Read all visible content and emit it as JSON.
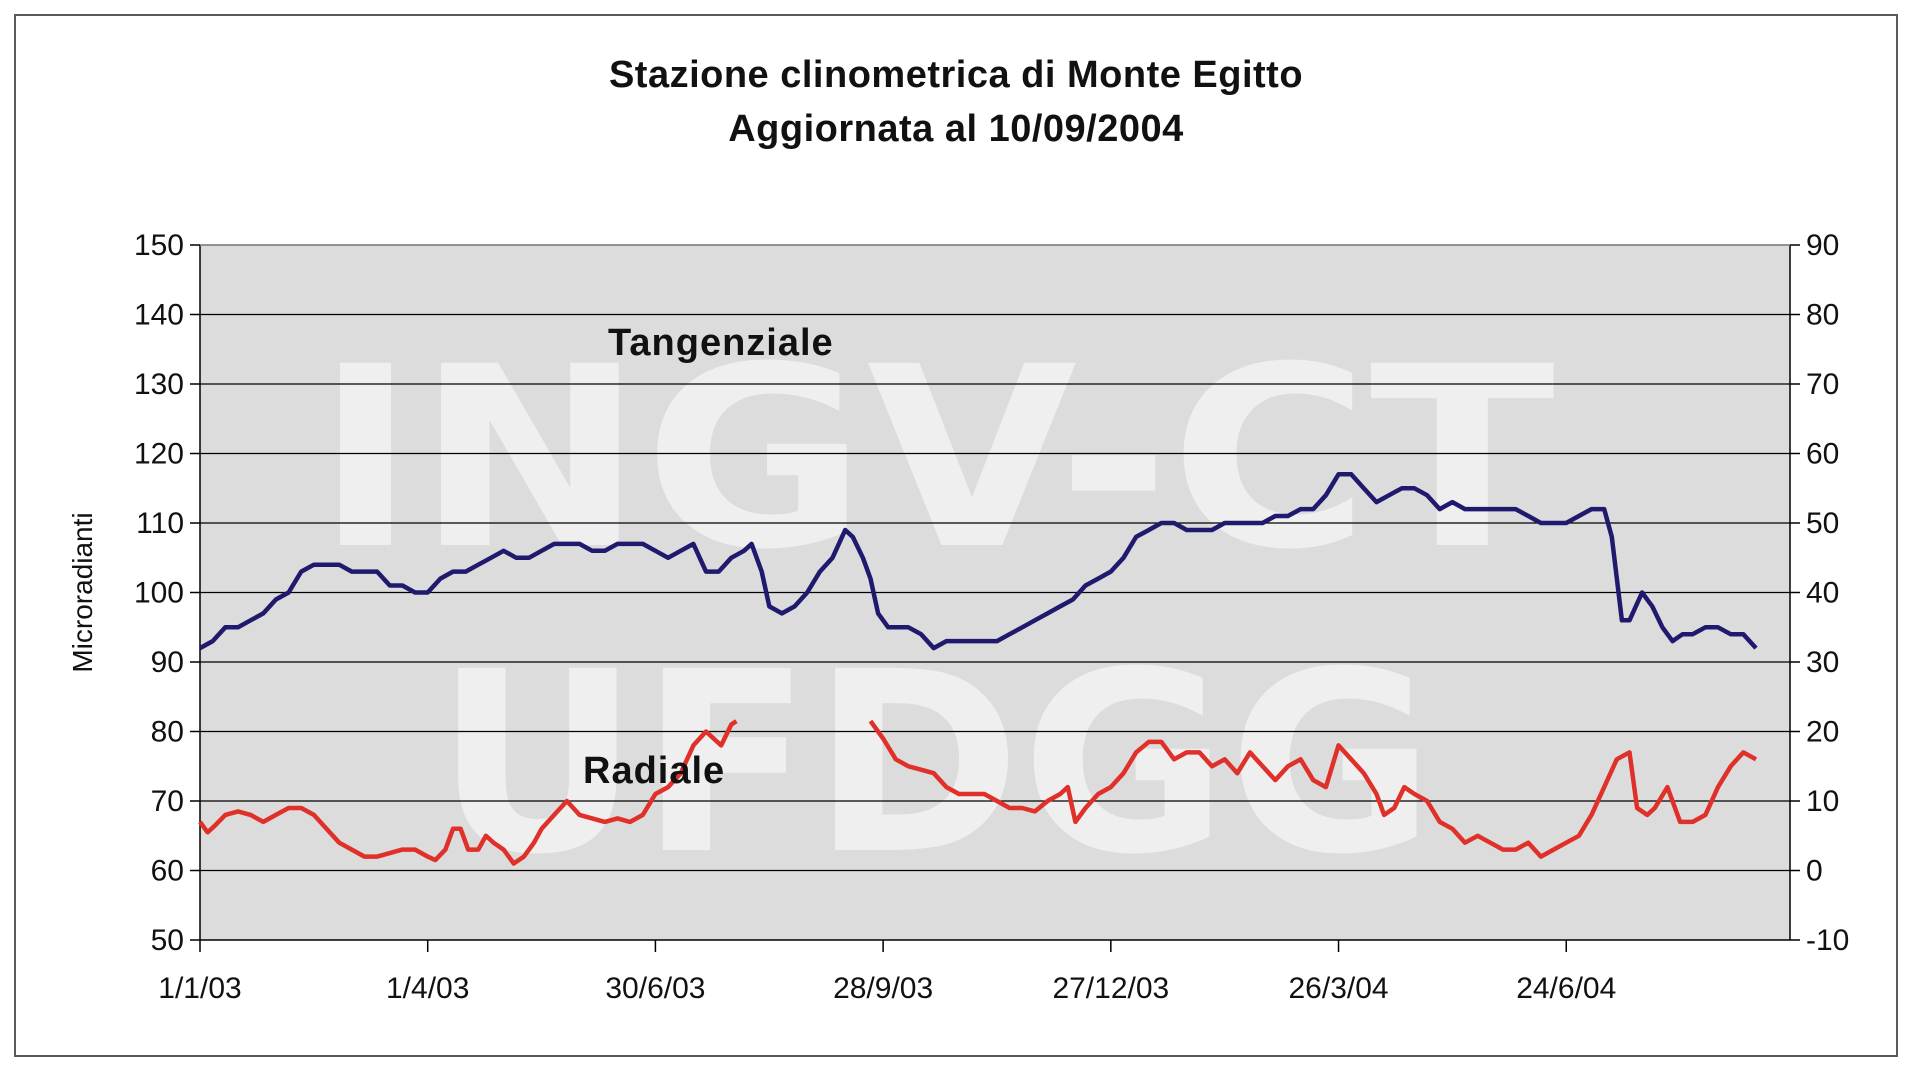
{
  "chart_data": {
    "type": "line",
    "title": "Stazione clinometrica di Monte Egitto",
    "subtitle": "Aggiornata al 10/09/2004",
    "ylabel": "Microradianti",
    "ylim": [
      50,
      150
    ],
    "y2lim": [
      -10,
      90
    ],
    "y_ticks": [
      "50",
      "60",
      "70",
      "80",
      "90",
      "100",
      "110",
      "120",
      "130",
      "140",
      "150"
    ],
    "y2_ticks": [
      "-10",
      "0",
      "10",
      "20",
      "30",
      "40",
      "50",
      "60",
      "70",
      "80",
      "90"
    ],
    "x_tick_labels": [
      "1/1/03",
      "1/4/03",
      "30/6/03",
      "28/9/03",
      "27/12/03",
      "26/3/04",
      "24/6/04"
    ],
    "x_tick_days": [
      0,
      90,
      180,
      270,
      360,
      450,
      540
    ],
    "xlim_days": [
      0,
      615
    ],
    "grid": true,
    "watermark": [
      "INGV-CT",
      "UFDGG"
    ],
    "colors": {
      "tangenziale": "#1f1a6e",
      "radiale": "#e0302a",
      "plot_bg": "#dcdcdc"
    },
    "series": [
      {
        "name": "Tangenziale",
        "axis": "left",
        "points": [
          [
            0,
            92
          ],
          [
            5,
            93
          ],
          [
            10,
            95
          ],
          [
            15,
            95
          ],
          [
            20,
            96
          ],
          [
            25,
            97
          ],
          [
            30,
            99
          ],
          [
            35,
            100
          ],
          [
            40,
            103
          ],
          [
            45,
            104
          ],
          [
            55,
            104
          ],
          [
            60,
            103
          ],
          [
            65,
            103
          ],
          [
            70,
            103
          ],
          [
            75,
            101
          ],
          [
            80,
            101
          ],
          [
            85,
            100
          ],
          [
            90,
            100
          ],
          [
            95,
            102
          ],
          [
            100,
            103
          ],
          [
            105,
            103
          ],
          [
            110,
            104
          ],
          [
            115,
            105
          ],
          [
            120,
            106
          ],
          [
            125,
            105
          ],
          [
            130,
            105
          ],
          [
            135,
            106
          ],
          [
            140,
            107
          ],
          [
            145,
            107
          ],
          [
            150,
            107
          ],
          [
            155,
            106
          ],
          [
            160,
            106
          ],
          [
            165,
            107
          ],
          [
            170,
            107
          ],
          [
            175,
            107
          ],
          [
            180,
            106
          ],
          [
            185,
            105
          ],
          [
            190,
            106
          ],
          [
            195,
            107
          ],
          [
            200,
            103
          ],
          [
            205,
            103
          ],
          [
            210,
            105
          ],
          [
            215,
            106
          ],
          [
            218,
            107
          ],
          [
            222,
            103
          ],
          [
            225,
            98
          ],
          [
            230,
            97
          ],
          [
            235,
            98
          ],
          [
            240,
            100
          ],
          [
            245,
            103
          ],
          [
            250,
            105
          ],
          [
            255,
            109
          ],
          [
            258,
            108
          ],
          [
            262,
            105
          ],
          [
            265,
            102
          ],
          [
            268,
            97
          ],
          [
            272,
            95
          ],
          [
            280,
            95
          ],
          [
            285,
            94
          ],
          [
            290,
            92
          ],
          [
            295,
            93
          ],
          [
            300,
            93
          ],
          [
            305,
            93
          ],
          [
            310,
            93
          ],
          [
            315,
            93
          ],
          [
            320,
            94
          ],
          [
            325,
            95
          ],
          [
            330,
            96
          ],
          [
            335,
            97
          ],
          [
            340,
            98
          ],
          [
            345,
            99
          ],
          [
            350,
            101
          ],
          [
            355,
            102
          ],
          [
            360,
            103
          ],
          [
            365,
            105
          ],
          [
            370,
            108
          ],
          [
            375,
            109
          ],
          [
            380,
            110
          ],
          [
            385,
            110
          ],
          [
            390,
            109
          ],
          [
            395,
            109
          ],
          [
            400,
            109
          ],
          [
            405,
            110
          ],
          [
            410,
            110
          ],
          [
            415,
            110
          ],
          [
            420,
            110
          ],
          [
            425,
            111
          ],
          [
            430,
            111
          ],
          [
            435,
            112
          ],
          [
            440,
            112
          ],
          [
            445,
            114
          ],
          [
            450,
            117
          ],
          [
            455,
            117
          ],
          [
            460,
            115
          ],
          [
            465,
            113
          ],
          [
            470,
            114
          ],
          [
            475,
            115
          ],
          [
            480,
            115
          ],
          [
            485,
            114
          ],
          [
            490,
            112
          ],
          [
            495,
            113
          ],
          [
            500,
            112
          ],
          [
            505,
            112
          ],
          [
            510,
            112
          ],
          [
            515,
            112
          ],
          [
            520,
            112
          ],
          [
            525,
            111
          ],
          [
            530,
            110
          ],
          [
            535,
            110
          ],
          [
            540,
            110
          ],
          [
            545,
            111
          ],
          [
            550,
            112
          ],
          [
            555,
            112
          ],
          [
            558,
            108
          ],
          [
            562,
            96
          ],
          [
            565,
            96
          ],
          [
            570,
            100
          ],
          [
            574,
            98
          ],
          [
            578,
            95
          ],
          [
            582,
            93
          ],
          [
            586,
            94
          ],
          [
            590,
            94
          ],
          [
            595,
            95
          ],
          [
            600,
            95
          ],
          [
            605,
            94
          ],
          [
            610,
            94
          ],
          [
            615,
            92
          ]
        ]
      },
      {
        "name": "Radiale",
        "axis": "right",
        "points": [
          [
            0,
            7
          ],
          [
            3,
            5.5
          ],
          [
            6,
            6.5
          ],
          [
            10,
            8
          ],
          [
            15,
            8.5
          ],
          [
            20,
            8
          ],
          [
            25,
            7
          ],
          [
            30,
            8
          ],
          [
            35,
            9
          ],
          [
            40,
            9
          ],
          [
            45,
            8
          ],
          [
            50,
            6
          ],
          [
            55,
            4
          ],
          [
            60,
            3
          ],
          [
            65,
            2
          ],
          [
            70,
            2
          ],
          [
            75,
            2.5
          ],
          [
            80,
            3
          ],
          [
            85,
            3
          ],
          [
            90,
            2
          ],
          [
            93,
            1.5
          ],
          [
            97,
            3
          ],
          [
            100,
            6
          ],
          [
            103,
            6
          ],
          [
            106,
            3
          ],
          [
            110,
            3
          ],
          [
            113,
            5
          ],
          [
            116,
            4
          ],
          [
            120,
            3
          ],
          [
            124,
            1
          ],
          [
            128,
            2
          ],
          [
            132,
            4
          ],
          [
            135,
            6
          ],
          [
            140,
            8
          ],
          [
            145,
            10
          ],
          [
            150,
            8
          ],
          [
            155,
            7.5
          ],
          [
            160,
            7
          ],
          [
            165,
            7.5
          ],
          [
            170,
            7
          ],
          [
            175,
            8
          ],
          [
            180,
            11
          ],
          [
            185,
            12
          ],
          [
            190,
            14
          ],
          [
            195,
            18
          ],
          [
            200,
            20
          ],
          [
            203,
            19
          ],
          [
            206,
            18
          ],
          [
            210,
            21
          ],
          [
            212,
            21.5
          ]
        ]
      },
      {
        "name": "Radiale",
        "axis": "right",
        "points": [
          [
            265,
            21.5
          ],
          [
            270,
            19
          ],
          [
            275,
            16
          ],
          [
            280,
            15
          ],
          [
            285,
            14.5
          ],
          [
            290,
            14
          ],
          [
            295,
            12
          ],
          [
            300,
            11
          ],
          [
            305,
            11
          ],
          [
            310,
            11
          ],
          [
            315,
            10
          ],
          [
            320,
            9
          ],
          [
            325,
            9
          ],
          [
            330,
            8.5
          ],
          [
            335,
            10
          ],
          [
            340,
            11
          ],
          [
            343,
            12
          ],
          [
            346,
            7
          ],
          [
            350,
            9
          ],
          [
            355,
            11
          ],
          [
            360,
            12
          ],
          [
            365,
            14
          ],
          [
            370,
            17
          ],
          [
            375,
            18.5
          ],
          [
            380,
            18.5
          ],
          [
            385,
            16
          ],
          [
            390,
            17
          ],
          [
            395,
            17
          ],
          [
            400,
            15
          ],
          [
            405,
            16
          ],
          [
            410,
            14
          ],
          [
            415,
            17
          ],
          [
            420,
            15
          ],
          [
            425,
            13
          ],
          [
            430,
            15
          ],
          [
            435,
            16
          ],
          [
            440,
            13
          ],
          [
            445,
            12
          ],
          [
            450,
            18
          ],
          [
            455,
            16
          ],
          [
            460,
            14
          ],
          [
            465,
            11
          ],
          [
            468,
            8
          ],
          [
            472,
            9
          ],
          [
            476,
            12
          ],
          [
            480,
            11
          ],
          [
            485,
            10
          ],
          [
            490,
            7
          ],
          [
            495,
            6
          ],
          [
            500,
            4
          ],
          [
            505,
            5
          ],
          [
            510,
            4
          ],
          [
            515,
            3
          ],
          [
            520,
            3
          ],
          [
            525,
            4
          ],
          [
            530,
            2
          ],
          [
            535,
            3
          ],
          [
            540,
            4
          ],
          [
            545,
            5
          ],
          [
            550,
            8
          ],
          [
            555,
            12
          ],
          [
            560,
            16
          ],
          [
            565,
            17
          ],
          [
            568,
            9
          ],
          [
            572,
            8
          ],
          [
            575,
            9
          ],
          [
            580,
            12
          ],
          [
            585,
            7
          ],
          [
            590,
            7
          ],
          [
            595,
            8
          ],
          [
            600,
            12
          ],
          [
            605,
            15
          ],
          [
            610,
            17
          ],
          [
            615,
            16
          ]
        ]
      }
    ],
    "annotations": [
      {
        "text": "Tangenziale",
        "near_series": "Tangenziale"
      },
      {
        "text": "Radiale",
        "near_series": "Radiale"
      }
    ]
  }
}
